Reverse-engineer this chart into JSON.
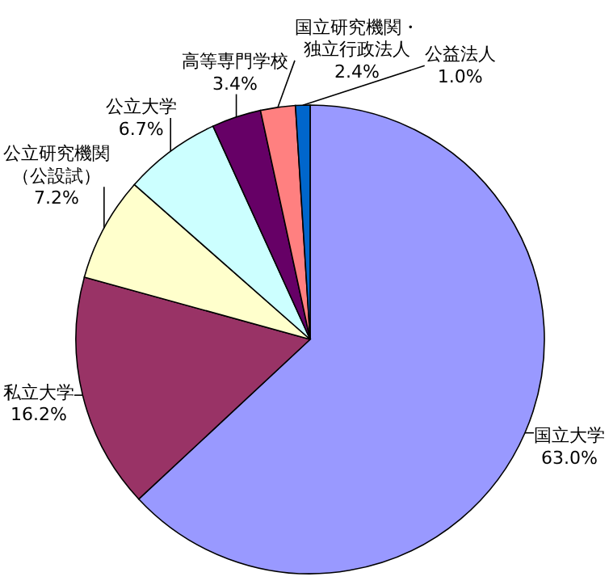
{
  "chart_data": {
    "type": "pie",
    "categories": [
      "国立大学",
      "私立大学",
      "公立研究機関（公設試）",
      "公立大学",
      "高等専門学校",
      "国立研究機関・独立行政法人",
      "公益法人"
    ],
    "values": [
      63.0,
      16.2,
      7.2,
      6.7,
      3.4,
      2.4,
      1.0
    ],
    "value_labels": [
      "63.0%",
      "16.2%",
      "7.2%",
      "6.7%",
      "3.4%",
      "2.4%",
      "1.0%"
    ],
    "colors": [
      "#9999ff",
      "#993366",
      "#ffffcc",
      "#ccffff",
      "#660066",
      "#ff8080",
      "#0066cc"
    ]
  }
}
